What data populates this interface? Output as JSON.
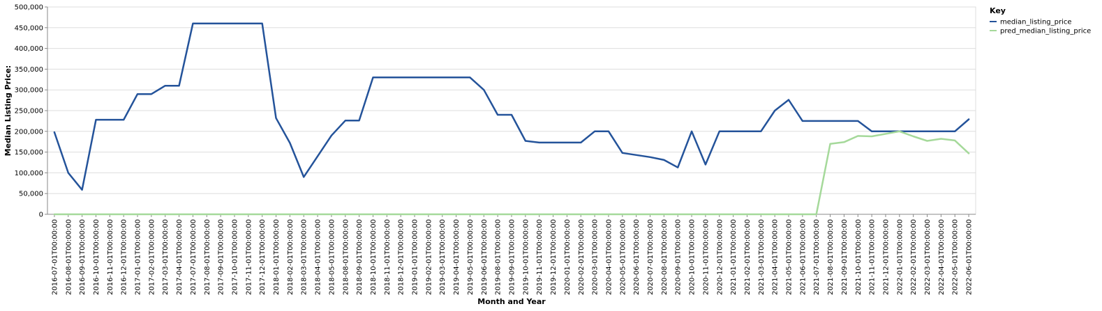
{
  "chart_data": {
    "type": "line",
    "title": "",
    "xlabel": "Month and Year",
    "ylabel": "Median Listing Price:",
    "ylim": [
      0,
      500000
    ],
    "y_ticks": [
      "0",
      "50,000",
      "100,000",
      "150,000",
      "200,000",
      "250,000",
      "300,000",
      "350,000",
      "400,000",
      "450,000",
      "500,000"
    ],
    "y_tick_values": [
      0,
      50000,
      100000,
      150000,
      200000,
      250000,
      300000,
      350000,
      400000,
      450000,
      500000
    ],
    "grid": true,
    "legend": {
      "title": "Key",
      "placement": "top-right"
    },
    "x": [
      "2016-07-01T00:00:00",
      "2016-08-01T00:00:00",
      "2016-09-01T00:00:00",
      "2016-10-01T00:00:00",
      "2016-11-01T00:00:00",
      "2016-12-01T00:00:00",
      "2017-01-01T00:00:00",
      "2017-02-01T00:00:00",
      "2017-03-01T00:00:00",
      "2017-04-01T00:00:00",
      "2017-07-01T00:00:00",
      "2017-08-01T00:00:00",
      "2017-09-01T00:00:00",
      "2017-10-01T00:00:00",
      "2017-11-01T00:00:00",
      "2017-12-01T00:00:00",
      "2018-01-01T00:00:00",
      "2018-02-01T00:00:00",
      "2018-03-01T00:00:00",
      "2018-04-01T00:00:00",
      "2018-05-01T00:00:00",
      "2018-08-01T00:00:00",
      "2018-09-01T00:00:00",
      "2018-10-01T00:00:00",
      "2018-11-01T00:00:00",
      "2018-12-01T00:00:00",
      "2019-01-01T00:00:00",
      "2019-02-01T00:00:00",
      "2019-03-01T00:00:00",
      "2019-04-01T00:00:00",
      "2019-05-01T00:00:00",
      "2019-06-01T00:00:00",
      "2019-08-01T00:00:00",
      "2019-09-01T00:00:00",
      "2019-10-01T00:00:00",
      "2019-11-01T00:00:00",
      "2019-12-01T00:00:00",
      "2020-01-01T00:00:00",
      "2020-02-01T00:00:00",
      "2020-03-01T00:00:00",
      "2020-04-01T00:00:00",
      "2020-05-01T00:00:00",
      "2020-06-01T00:00:00",
      "2020-07-01T00:00:00",
      "2020-08-01T00:00:00",
      "2020-09-01T00:00:00",
      "2020-10-01T00:00:00",
      "2020-11-01T00:00:00",
      "2020-12-01T00:00:00",
      "2021-01-01T00:00:00",
      "2021-02-01T00:00:00",
      "2021-03-01T00:00:00",
      "2021-04-01T00:00:00",
      "2021-05-01T00:00:00",
      "2021-06-01T00:00:00",
      "2021-07-01T00:00:00",
      "2021-08-01T00:00:00",
      "2021-09-01T00:00:00",
      "2021-10-01T00:00:00",
      "2021-11-01T00:00:00",
      "2021-12-01T00:00:00",
      "2022-01-01T00:00:00",
      "2022-02-01T00:00:00",
      "2022-03-01T00:00:00",
      "2022-04-01T00:00:00",
      "2022-05-01T00:00:00",
      "2022-06-01T00:00:00"
    ],
    "series": [
      {
        "name": "median_listing_price",
        "color": "#24539a",
        "values": [
          198000,
          100000,
          59000,
          228000,
          228000,
          228000,
          290000,
          290000,
          310000,
          310000,
          460000,
          460000,
          460000,
          460000,
          460000,
          460000,
          232000,
          172000,
          90000,
          140000,
          190000,
          226000,
          226000,
          330000,
          330000,
          330000,
          330000,
          330000,
          330000,
          330000,
          330000,
          300000,
          240000,
          240000,
          177000,
          173000,
          173000,
          173000,
          173000,
          200000,
          200000,
          148000,
          143000,
          138000,
          131000,
          113000,
          200000,
          120000,
          200000,
          200000,
          200000,
          200000,
          250000,
          276000,
          225000,
          225000,
          225000,
          225000,
          225000,
          200000,
          200000,
          200000,
          200000,
          200000,
          200000,
          200000,
          229000
        ]
      },
      {
        "name": "pred_median_listing_price",
        "color": "#a5d99a",
        "values": [
          0,
          0,
          0,
          0,
          0,
          0,
          0,
          0,
          0,
          0,
          0,
          0,
          0,
          0,
          0,
          0,
          0,
          0,
          0,
          0,
          0,
          0,
          0,
          0,
          0,
          0,
          0,
          0,
          0,
          0,
          0,
          0,
          0,
          0,
          0,
          0,
          0,
          0,
          0,
          0,
          0,
          0,
          0,
          0,
          0,
          0,
          0,
          0,
          0,
          0,
          0,
          0,
          0,
          0,
          0,
          0,
          170000,
          174000,
          189000,
          188000,
          194000,
          200000,
          188000,
          177000,
          182000,
          178000,
          147000
        ]
      }
    ]
  }
}
